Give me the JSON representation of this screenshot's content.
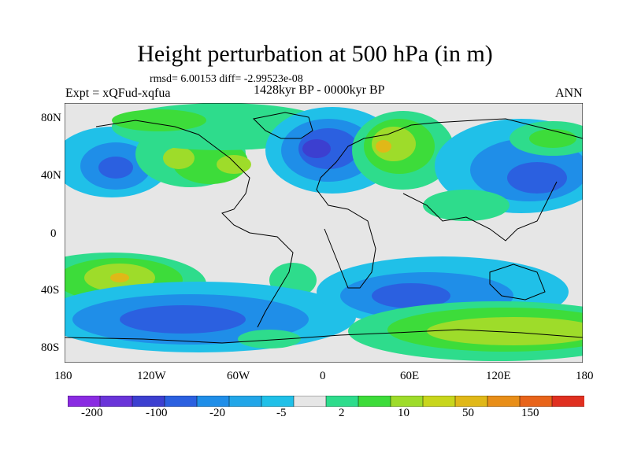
{
  "header": {
    "title": "Height perturbation at 500 hPa (in m)",
    "stats": "rmsd= 6.00153 diff= -2.99523e-08",
    "experiment": "Expt = xQFud-xqfua",
    "period": "1428kyr BP - 0000kyr BP",
    "season": "ANN"
  },
  "map": {
    "projection": "cylindrical-equidistant",
    "lon_range": [
      -180,
      180
    ],
    "lat_range": [
      -90,
      90
    ],
    "y_ticks": [
      "80N",
      "40N",
      "0",
      "40S",
      "80S"
    ],
    "x_ticks": [
      "180",
      "120W",
      "60W",
      "0",
      "60E",
      "120E",
      "180"
    ],
    "missing_color": "#e6e6e6",
    "coastline_color": "#000000"
  },
  "legend": {
    "labels": [
      "-200",
      "-100",
      "-20",
      "-5",
      "2",
      "10",
      "50",
      "150"
    ],
    "colors": [
      "#8a2be2",
      "#6a34d9",
      "#3c3fd0",
      "#2b60e0",
      "#1f8ee8",
      "#22a6e8",
      "#20c0e8",
      "#e6e6e6",
      "#2edc8c",
      "#3ddc3a",
      "#9edc2a",
      "#c8d61c",
      "#e0b818",
      "#e88e18",
      "#e8641a",
      "#e03020"
    ]
  }
}
